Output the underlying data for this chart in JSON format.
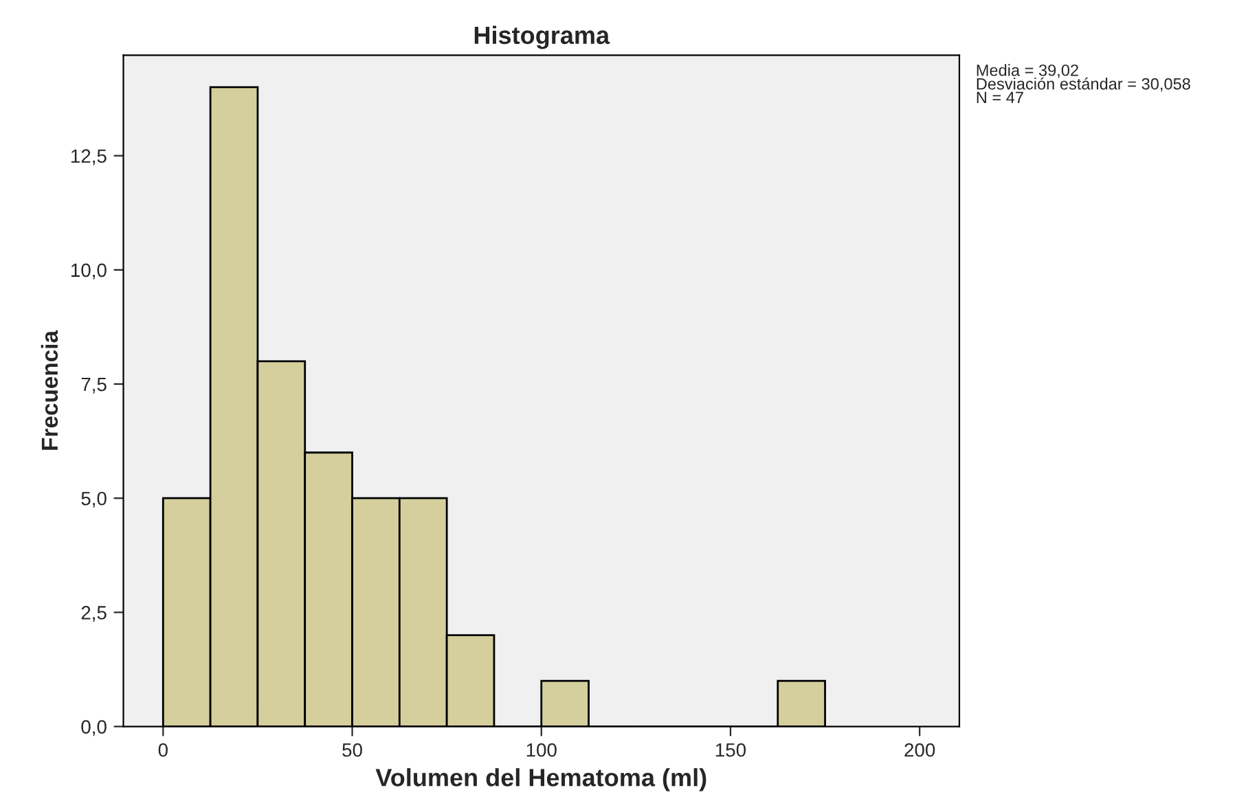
{
  "chart_data": {
    "type": "histogram",
    "title": "Histograma",
    "xlabel": "Volumen del Hematoma (ml)",
    "ylabel": "Frecuencia",
    "bins": [
      0,
      12.5,
      25,
      37.5,
      50,
      62.5,
      75,
      87.5,
      100,
      112.5,
      125,
      137.5,
      150,
      162.5,
      175
    ],
    "values": [
      5,
      14,
      8,
      6,
      5,
      5,
      2,
      0,
      1,
      0,
      0,
      0,
      0,
      1
    ],
    "color": "#d4cf9c",
    "xlim": [
      -10.5,
      210.5
    ],
    "xticks": [
      0,
      50,
      100,
      150,
      200
    ],
    "ylim": [
      0,
      14.7
    ],
    "yticks": [
      {
        "value": 0,
        "label": "0,0"
      },
      {
        "value": 2.5,
        "label": "2,5"
      },
      {
        "value": 5,
        "label": "5,0"
      },
      {
        "value": 7.5,
        "label": "7,5"
      },
      {
        "value": 10,
        "label": "10,0"
      },
      {
        "value": 12.5,
        "label": "12,5"
      }
    ],
    "grid": false,
    "annotations": [
      "Media = 39,02",
      "Desviación estándar = 30,058",
      "N = 47"
    ]
  }
}
